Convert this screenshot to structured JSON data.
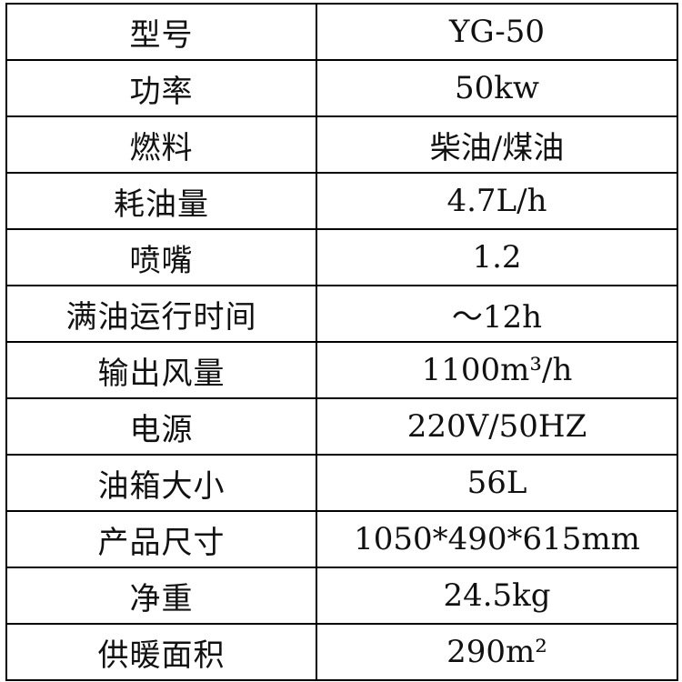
{
  "table": {
    "rows": [
      [
        "型号",
        "YG-50"
      ],
      [
        "功率",
        "50kw"
      ],
      [
        "燃料",
        "柴油/煤油"
      ],
      [
        "耗油量",
        "4.7L/h"
      ],
      [
        "喷嘴",
        "1.2"
      ],
      [
        "满油运行时间",
        "～12h"
      ],
      [
        "输出风量",
        "1100m³/h"
      ],
      [
        "电源",
        "220V/50HZ"
      ],
      [
        "油箱大小",
        "56L"
      ],
      [
        "产品尺寸",
        "1050*490*615mm"
      ],
      [
        "净重",
        "24.5kg"
      ],
      [
        "供暖面积",
        "290m²"
      ]
    ]
  }
}
